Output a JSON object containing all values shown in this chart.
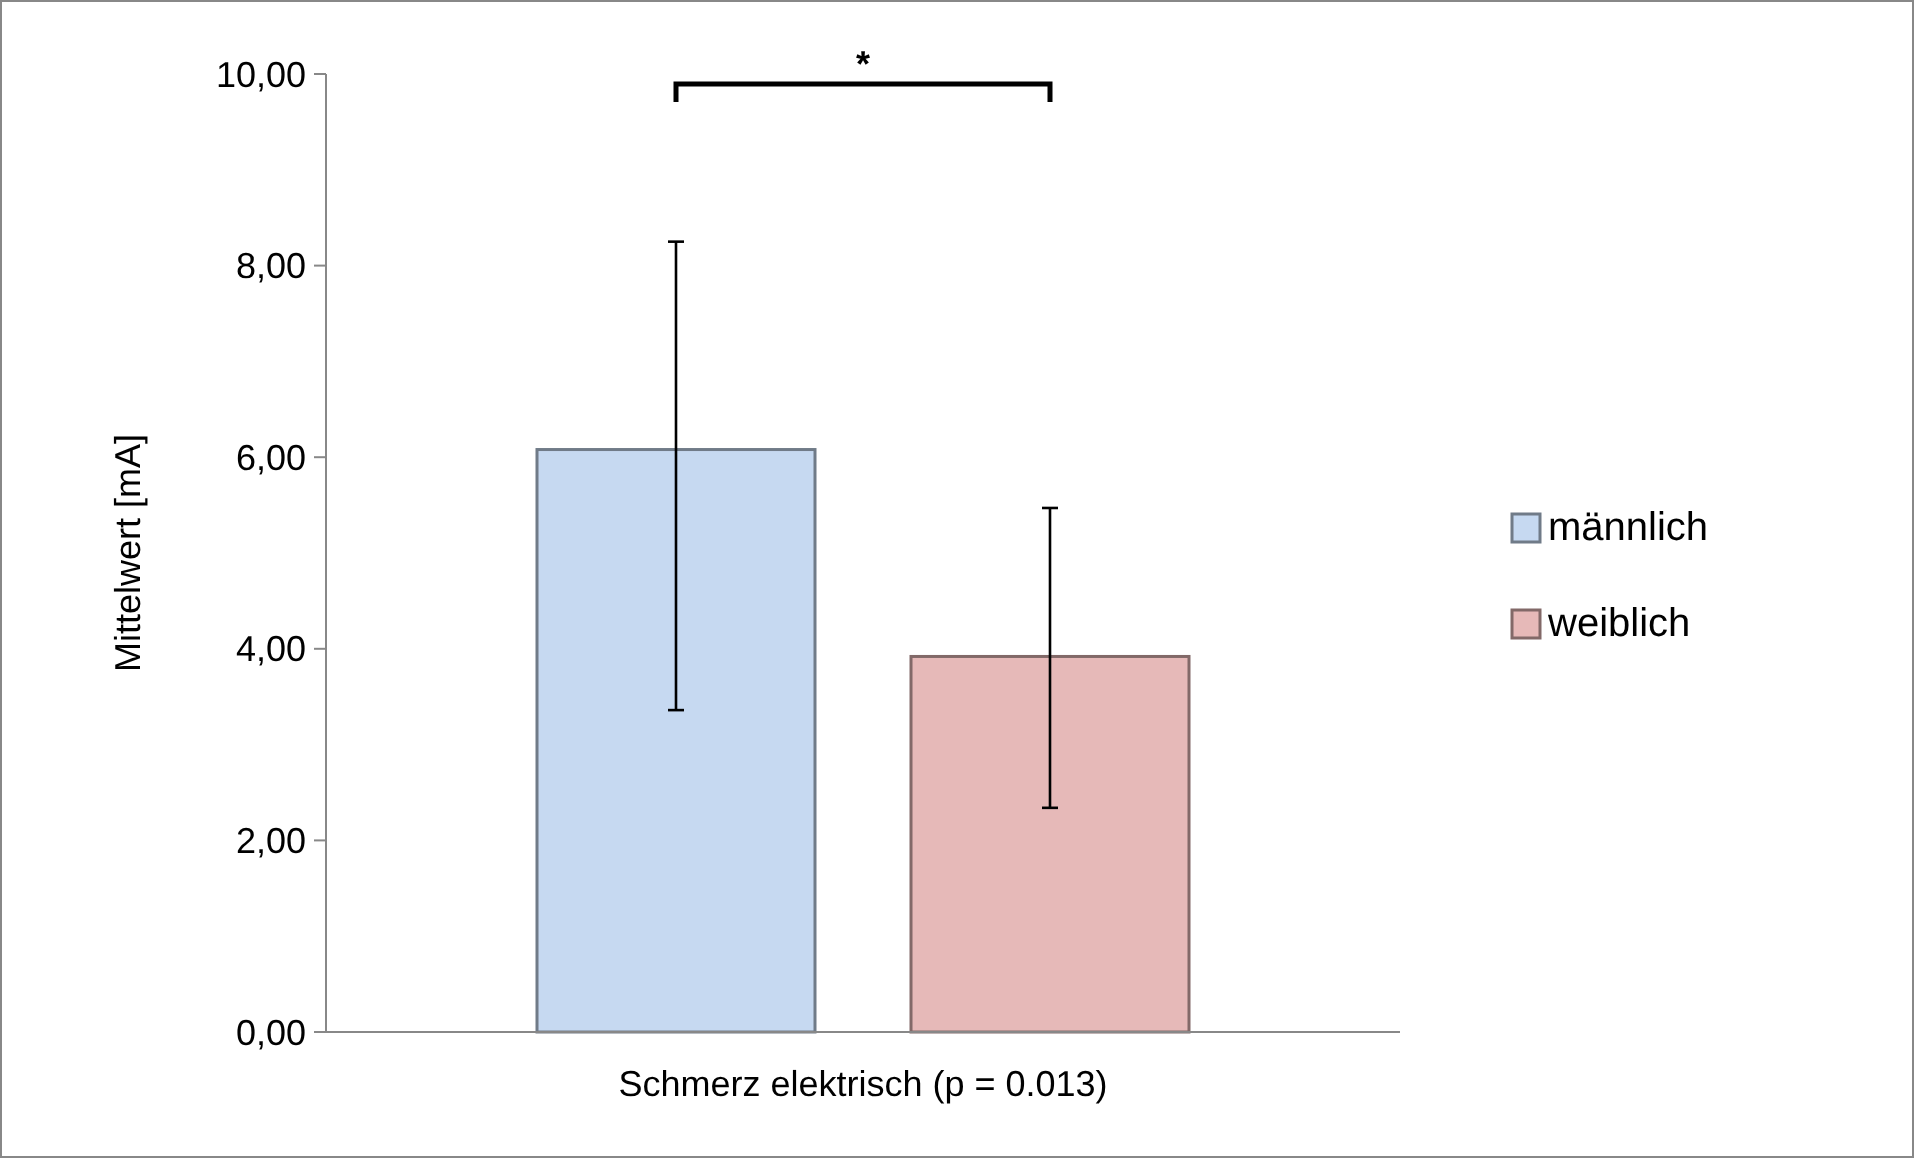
{
  "chart_data": {
    "type": "bar",
    "ylabel": "Mittelwert [mA]",
    "categories": [
      "Schmerz elektrisch (p = 0.013)"
    ],
    "series": [
      {
        "name": "männlich",
        "color": "#c6d9f1",
        "values": [
          6.08
        ],
        "errors": [
          [
            3.36,
            8.25
          ]
        ]
      },
      {
        "name": "weiblich",
        "color": "#e6b9b8",
        "values": [
          3.92
        ],
        "errors": [
          [
            2.34,
            5.47
          ]
        ]
      }
    ],
    "ylim": [
      0,
      10
    ],
    "yticks": [
      {
        "value": 0,
        "label": "0,00"
      },
      {
        "value": 2,
        "label": "2,00"
      },
      {
        "value": 4,
        "label": "4,00"
      },
      {
        "value": 6,
        "label": "6,00"
      },
      {
        "value": 8,
        "label": "8,00"
      },
      {
        "value": 10,
        "label": "10,00"
      }
    ],
    "grid": false,
    "legend": "right",
    "annotations": [
      "*"
    ]
  }
}
